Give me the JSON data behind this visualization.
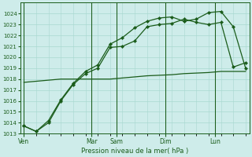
{
  "background_color": "#ceecea",
  "grid_color": "#a8d8d0",
  "line_color": "#1a5c1a",
  "xlabel": "Pression niveau de la mer( hPa )",
  "ylim": [
    1013,
    1025
  ],
  "yticks": [
    1013,
    1014,
    1015,
    1016,
    1017,
    1018,
    1019,
    1020,
    1021,
    1022,
    1023,
    1024
  ],
  "day_labels": [
    "Ven",
    "Mar",
    "Sam",
    "Dim",
    "Lun"
  ],
  "day_x": [
    0,
    5.5,
    7.5,
    11.5,
    15.5
  ],
  "xlim": [
    -0.3,
    18.3
  ],
  "series1_x": [
    0,
    1,
    2,
    3,
    4,
    5,
    6,
    7,
    8,
    9,
    10,
    11,
    12,
    13,
    14,
    15,
    16,
    17,
    18
  ],
  "series1_y": [
    1013.7,
    1013.2,
    1014.0,
    1016.0,
    1017.5,
    1018.5,
    1019.0,
    1020.9,
    1021.0,
    1021.5,
    1022.8,
    1023.0,
    1023.1,
    1023.5,
    1023.2,
    1023.0,
    1023.2,
    1019.1,
    1019.5
  ],
  "series2_x": [
    0,
    1,
    2,
    3,
    4,
    5,
    6,
    7,
    8,
    9,
    10,
    11,
    12,
    13,
    14,
    15,
    16,
    17,
    18
  ],
  "series2_y": [
    1013.7,
    1013.2,
    1014.2,
    1016.1,
    1017.6,
    1018.7,
    1019.3,
    1021.2,
    1021.8,
    1022.7,
    1023.3,
    1023.6,
    1023.7,
    1023.3,
    1023.5,
    1024.1,
    1024.2,
    1022.8,
    1019.0
  ],
  "series3_x": [
    0,
    1,
    2,
    3,
    4,
    5,
    6,
    7,
    8,
    9,
    10,
    11,
    12,
    13,
    14,
    15,
    16,
    17,
    18
  ],
  "series3_y": [
    1017.7,
    1017.8,
    1017.9,
    1018.0,
    1018.0,
    1018.0,
    1018.0,
    1018.0,
    1018.1,
    1018.2,
    1018.3,
    1018.35,
    1018.4,
    1018.5,
    1018.55,
    1018.6,
    1018.7,
    1018.7,
    1018.7
  ]
}
